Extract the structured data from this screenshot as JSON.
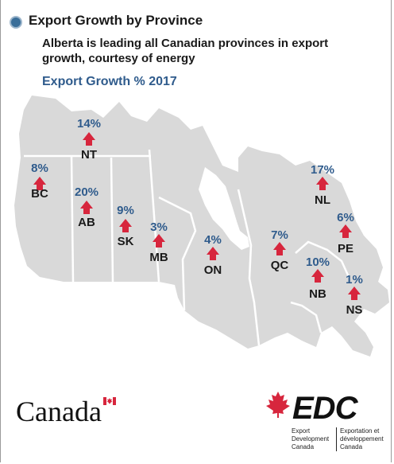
{
  "header": {
    "title": "Export Growth by Province",
    "subtitle": "Alberta is leading all Canadian provinces in export growth, courtesy of energy",
    "heading": "Export Growth % 2017"
  },
  "colors": {
    "accent": "#2f5b8c",
    "arrow": "#d7263d",
    "land": "#d9d9d9",
    "border": "#ffffff"
  },
  "provinces": [
    {
      "abbr": "NT",
      "growth": "14%"
    },
    {
      "abbr": "BC",
      "growth": "8%"
    },
    {
      "abbr": "AB",
      "growth": "20%"
    },
    {
      "abbr": "SK",
      "growth": "9%"
    },
    {
      "abbr": "MB",
      "growth": "3%"
    },
    {
      "abbr": "ON",
      "growth": "4%"
    },
    {
      "abbr": "QC",
      "growth": "7%"
    },
    {
      "abbr": "NL",
      "growth": "17%"
    },
    {
      "abbr": "PE",
      "growth": "6%"
    },
    {
      "abbr": "NB",
      "growth": "10%"
    },
    {
      "abbr": "NS",
      "growth": "1%"
    }
  ],
  "footer": {
    "canada_wordmark": "Canada",
    "edc_logo": "EDC",
    "edc_name_en": [
      "Export",
      "Development",
      "Canada"
    ],
    "edc_name_fr": [
      "Exportation et",
      "développement",
      "Canada"
    ]
  }
}
